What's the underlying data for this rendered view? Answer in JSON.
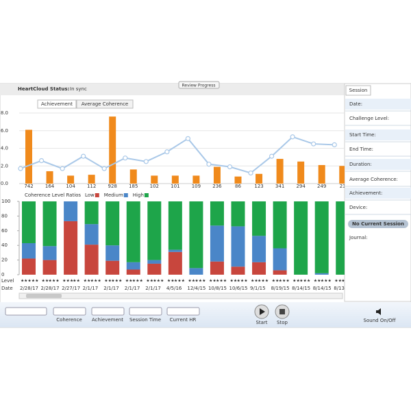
{
  "header": {
    "status_label": "HeartCloud Status:",
    "status": "In sync",
    "button": "Review Progress"
  },
  "tabs": [
    "Achievement",
    "Average Coherence"
  ],
  "achievement_chart": {
    "type": "combo",
    "ylim": [
      0,
      8
    ],
    "yticks": [
      {
        "value": 0,
        "label": "0.0"
      },
      {
        "value": 2,
        "label": "2.0"
      },
      {
        "value": 4,
        "label": "4.0"
      },
      {
        "value": 6,
        "label": "6.0"
      },
      {
        "value": 8,
        "label": "8.0"
      }
    ],
    "grid": true,
    "bars": {
      "color": "#f08a1c",
      "values": [
        6.1,
        1.4,
        0.9,
        1.0,
        7.6,
        1.6,
        0.9,
        0.9,
        0.9,
        1.9,
        0.8,
        1.1,
        2.8,
        2.5,
        2.1,
        2.0
      ]
    },
    "line": {
      "color": "#a9c8e8",
      "values": [
        1.7,
        2.6,
        1.7,
        3.1,
        1.7,
        2.9,
        2.5,
        3.6,
        5.1,
        2.2,
        1.9,
        1.2,
        3.1,
        5.3,
        4.5,
        4.4
      ]
    },
    "scores": [
      "742",
      "164",
      "104",
      "112",
      "928",
      "185",
      "102",
      "101",
      "109",
      "236",
      "86",
      "123",
      "341",
      "294",
      "249",
      "23"
    ]
  },
  "ratio_chart": {
    "type": "stacked_bar",
    "title": "Coherence Level Ratios",
    "ylim": [
      0,
      100
    ],
    "yticks": [
      0,
      20,
      40,
      60,
      80,
      100
    ],
    "series": [
      {
        "name": "Low",
        "color": "#c8463d",
        "values": [
          22,
          20,
          73,
          41,
          19,
          7,
          15,
          31,
          0,
          18,
          11,
          17,
          6,
          0,
          0,
          0
        ]
      },
      {
        "name": "Medium",
        "color": "#4a86c8",
        "values": [
          21,
          19,
          27,
          28,
          21,
          10,
          5,
          3,
          9,
          49,
          55,
          36,
          30,
          0,
          2,
          0
        ]
      },
      {
        "name": "High",
        "color": "#1ea54a",
        "values": [
          57,
          61,
          0,
          31,
          60,
          83,
          80,
          66,
          91,
          33,
          34,
          47,
          64,
          100,
          98,
          100
        ]
      }
    ],
    "level_label": "Level",
    "levels": [
      1,
      2,
      3,
      2,
      2,
      2,
      2,
      2,
      2,
      2,
      2,
      2,
      2,
      2,
      2,
      2
    ],
    "date_label": "Date",
    "dates": [
      "2/28/17",
      "2/28/17",
      "2/27/17",
      "2/1/17",
      "2/1/17",
      "2/1/17",
      "2/1/17",
      "4/5/16",
      "12/4/15",
      "10/8/15",
      "10/6/15",
      "9/1/15",
      "8/19/15",
      "8/14/15",
      "8/14/15",
      "8/13/15"
    ]
  },
  "session_panel": {
    "tab": "Session",
    "fields": [
      "Date:",
      "Challenge Level:",
      "Start Time:",
      "End Time:",
      "Duration:",
      "Average Coherence:",
      "Achievement:",
      "Device:"
    ],
    "status": "No Current Session",
    "journal": "Journal:"
  },
  "toolbar": {
    "fields": [
      "Coherence",
      "Achievement",
      "Session Time",
      "Current HR"
    ],
    "start": "Start",
    "stop": "Stop",
    "sound": "Sound On/Off"
  }
}
